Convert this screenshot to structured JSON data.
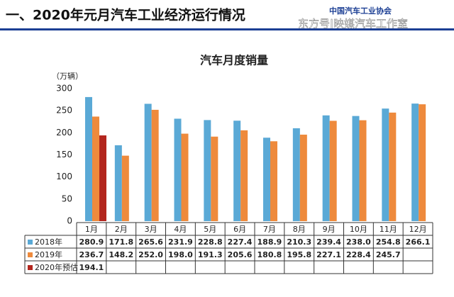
{
  "header": {
    "title": "一、2020年元月汽车工业经济运行情况",
    "logo": "中国汽车工业协会",
    "watermark": "东方号|映媒汽车工作室"
  },
  "chart_data": {
    "type": "bar",
    "title": "汽车月度销量",
    "y_label": "（万辆）",
    "categories": [
      "1月",
      "2月",
      "3月",
      "4月",
      "5月",
      "6月",
      "7月",
      "8月",
      "9月",
      "10月",
      "11月",
      "12月"
    ],
    "series": [
      {
        "name": "2018年",
        "color": "#5aa9d6",
        "values": [
          280.9,
          171.8,
          265.6,
          231.9,
          228.8,
          227.4,
          188.9,
          210.3,
          239.4,
          238.0,
          254.8,
          266.1
        ],
        "value_labels": [
          "280.9",
          "171.8",
          "265.6",
          "231.9",
          "228.8",
          "227.4",
          "188.9",
          "210.3",
          "239.4",
          "238.0",
          "254.8",
          "266.1"
        ]
      },
      {
        "name": "2019年",
        "color": "#ee8a3c",
        "values": [
          236.7,
          148.2,
          252.0,
          198.0,
          191.3,
          205.6,
          180.8,
          195.8,
          227.1,
          228.4,
          245.7,
          264.5
        ],
        "value_labels": [
          "236.7",
          "148.2",
          "252.0",
          "198.0",
          "191.3",
          "205.6",
          "180.8",
          "195.8",
          "227.1",
          "228.4",
          "245.7",
          null
        ]
      },
      {
        "name": "2020年预估",
        "color": "#b3261e",
        "values": [
          194.1,
          null,
          null,
          null,
          null,
          null,
          null,
          null,
          null,
          null,
          null,
          null
        ],
        "value_labels": [
          "194.1",
          null,
          null,
          null,
          null,
          null,
          null,
          null,
          null,
          null,
          null,
          null
        ]
      }
    ],
    "ylim": [
      0,
      300
    ],
    "yticks": [
      0,
      50,
      100,
      150,
      200,
      250,
      300
    ],
    "grid": false
  }
}
